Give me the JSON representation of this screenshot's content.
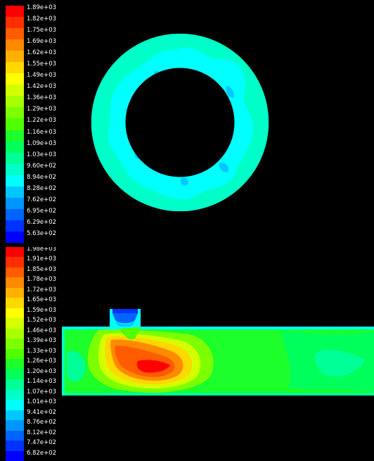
{
  "viewports": [
    {
      "name": "annulus-cross-section",
      "colormap": {
        "colors": [
          "#ff0000",
          "#ff2e00",
          "#ff5c00",
          "#ff8a00",
          "#ffb000",
          "#ffd800",
          "#ffff00",
          "#d4ff00",
          "#a8ff00",
          "#7cff00",
          "#50ff00",
          "#1cff2a",
          "#00ff5a",
          "#00ff96",
          "#00ffc8",
          "#00ffff",
          "#00c8ff",
          "#0096ff",
          "#0064ff",
          "#0032ff",
          "#0000ff"
        ],
        "labels": [
          "1.89e+03",
          "1.82e+03",
          "1.75e+03",
          "1.69e+03",
          "1.62e+03",
          "1.55e+03",
          "1.49e+03",
          "1.42e+03",
          "1.36e+03",
          "1.29e+03",
          "1.22e+03",
          "1.16e+03",
          "1.09e+03",
          "1.03e+03",
          "9.60e+02",
          "8.94e+02",
          "8.28e+02",
          "7.62e+02",
          "6.95e+02",
          "6.29e+02",
          "5.63e+02"
        ]
      }
    },
    {
      "name": "channel-side-section",
      "colormap": {
        "colors": [
          "#ff0000",
          "#ff2e00",
          "#ff5c00",
          "#ff8a00",
          "#ffb000",
          "#ffd800",
          "#ffff00",
          "#d4ff00",
          "#a8ff00",
          "#7cff00",
          "#50ff00",
          "#1cff2a",
          "#00ff5a",
          "#00ff96",
          "#00ffc8",
          "#00ffff",
          "#00c8ff",
          "#0096ff",
          "#0064ff",
          "#0032ff",
          "#0000ff"
        ],
        "labels": [
          "1.98e+03",
          "1.91e+03",
          "1.85e+03",
          "1.78e+03",
          "1.72e+03",
          "1.65e+03",
          "1.59e+03",
          "1.52e+03",
          "1.46e+03",
          "1.39e+03",
          "1.33e+03",
          "1.26e+03",
          "1.20e+03",
          "1.14e+03",
          "1.07e+03",
          "1.01e+03",
          "9.41e+02",
          "8.76e+02",
          "8.12e+02",
          "7.47e+02",
          "6.82e+02"
        ]
      }
    }
  ]
}
